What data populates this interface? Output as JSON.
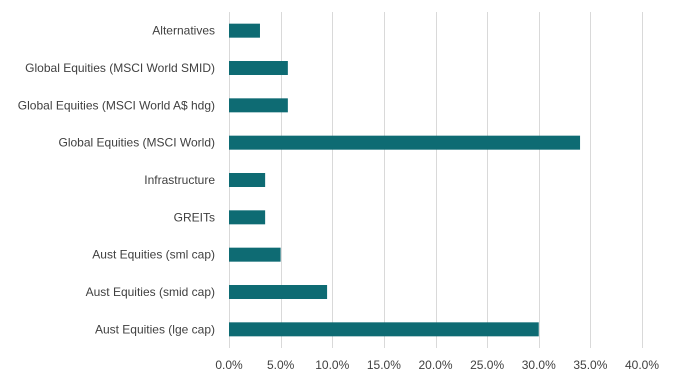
{
  "chart_data": {
    "type": "bar",
    "orientation": "horizontal",
    "title": "",
    "xlabel": "",
    "ylabel": "",
    "categories": [
      "Aust Equities (lge cap)",
      "Aust Equities (smid cap)",
      "Aust Equities (sml cap)",
      "GREITs",
      "Infrastructure",
      "Global Equities (MSCI World)",
      "Global Equities (MSCI World A$ hdg)",
      "Global Equities (MSCI World SMID)",
      "Alternatives"
    ],
    "values": [
      30.0,
      9.5,
      5.0,
      3.5,
      3.5,
      34.0,
      5.7,
      5.7,
      3.0
    ],
    "xlim": [
      0,
      40
    ],
    "xticks": [
      0,
      5,
      10,
      15,
      20,
      25,
      30,
      35,
      40
    ],
    "xtick_labels": [
      "0.0%",
      "5.0%",
      "10.0%",
      "15.0%",
      "20.0%",
      "25.0%",
      "30.0%",
      "35.0%",
      "40.0%"
    ],
    "unit": "%",
    "grid": "vertical",
    "legend": "none",
    "bar_color": "#0e6b73",
    "grid_color": "#d9d9d9",
    "text_color": "#404040"
  }
}
